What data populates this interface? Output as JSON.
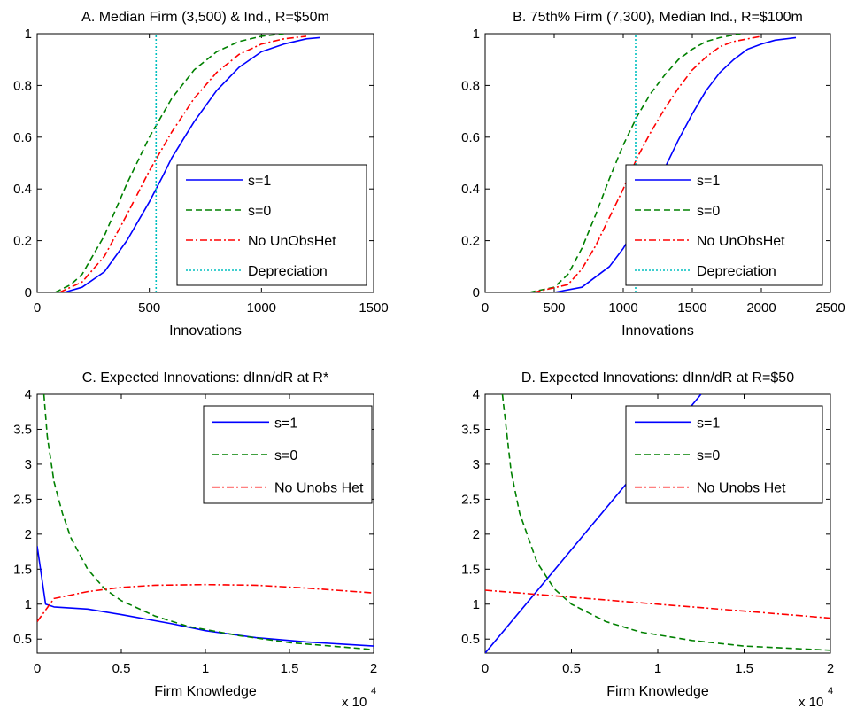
{
  "chart_data": [
    {
      "type": "line",
      "title": "A. Median Firm (3,500) & Ind., R=$50m",
      "xlabel": "Innovations",
      "ylabel": "",
      "xlim": [
        0,
        1500
      ],
      "ylim": [
        0,
        1
      ],
      "xticks": [
        0,
        500,
        1000,
        1500
      ],
      "yticks": [
        0,
        0.2,
        0.4,
        0.6,
        0.8,
        1
      ],
      "xtick_labels": [
        "0",
        "500",
        "1000",
        "1500"
      ],
      "ytick_labels": [
        "0",
        "0.2",
        "0.4",
        "0.6",
        "0.8",
        "1"
      ],
      "legend_position": "bottom-right",
      "series": [
        {
          "name": "s=1",
          "color": "#0000ff",
          "dash": "solid",
          "x": [
            120,
            200,
            300,
            400,
            500,
            560,
            600,
            700,
            800,
            900,
            1000,
            1100,
            1200,
            1260
          ],
          "y": [
            0.0,
            0.02,
            0.08,
            0.2,
            0.35,
            0.45,
            0.52,
            0.66,
            0.78,
            0.87,
            0.93,
            0.96,
            0.98,
            0.985
          ]
        },
        {
          "name": "s=0",
          "color": "#008000",
          "dash": "dashed",
          "x": [
            80,
            150,
            200,
            300,
            400,
            500,
            600,
            700,
            800,
            900,
            1000,
            1100
          ],
          "y": [
            0.0,
            0.03,
            0.07,
            0.22,
            0.42,
            0.6,
            0.75,
            0.86,
            0.93,
            0.97,
            0.99,
            1.0
          ]
        },
        {
          "name": "No UnObsHet",
          "color": "#ff0000",
          "dash": "dashdot",
          "x": [
            100,
            200,
            300,
            400,
            500,
            600,
            700,
            800,
            900,
            1000,
            1100,
            1200
          ],
          "y": [
            0.0,
            0.04,
            0.14,
            0.3,
            0.47,
            0.62,
            0.75,
            0.85,
            0.92,
            0.96,
            0.98,
            0.99
          ]
        },
        {
          "name": "Depreciation",
          "color": "#00bfbf",
          "dash": "dotted",
          "x": [
            530,
            530
          ],
          "y": [
            0,
            1
          ]
        }
      ]
    },
    {
      "type": "line",
      "title": "B. 75th% Firm (7,300), Median Ind., R=$100m",
      "xlabel": "Innovations",
      "ylabel": "",
      "xlim": [
        0,
        2500
      ],
      "ylim": [
        0,
        1
      ],
      "xticks": [
        0,
        500,
        1000,
        1500,
        2000,
        2500
      ],
      "yticks": [
        0,
        0.2,
        0.4,
        0.6,
        0.8,
        1
      ],
      "xtick_labels": [
        "0",
        "500",
        "1000",
        "1500",
        "2000",
        "2500"
      ],
      "ytick_labels": [
        "0",
        "0.2",
        "0.4",
        "0.6",
        "0.8",
        "1"
      ],
      "legend_position": "bottom-right",
      "series": [
        {
          "name": "s=1",
          "color": "#0000ff",
          "dash": "solid",
          "x": [
            500,
            700,
            900,
            1000,
            1100,
            1200,
            1300,
            1400,
            1500,
            1600,
            1700,
            1800,
            1900,
            2000,
            2100,
            2250
          ],
          "y": [
            0.0,
            0.02,
            0.1,
            0.17,
            0.26,
            0.37,
            0.48,
            0.59,
            0.69,
            0.78,
            0.85,
            0.9,
            0.94,
            0.96,
            0.975,
            0.985
          ]
        },
        {
          "name": "s=0",
          "color": "#008000",
          "dash": "dashed",
          "x": [
            320,
            500,
            600,
            700,
            800,
            900,
            1000,
            1100,
            1200,
            1300,
            1400,
            1500,
            1600,
            1700,
            1850
          ],
          "y": [
            0.0,
            0.02,
            0.07,
            0.17,
            0.3,
            0.44,
            0.57,
            0.68,
            0.77,
            0.84,
            0.9,
            0.94,
            0.97,
            0.985,
            1.0
          ]
        },
        {
          "name": "No UnObsHet",
          "color": "#ff0000",
          "dash": "dashdot",
          "x": [
            350,
            600,
            700,
            800,
            900,
            1000,
            1100,
            1200,
            1300,
            1400,
            1500,
            1600,
            1700,
            1800,
            2000
          ],
          "y": [
            0.0,
            0.03,
            0.09,
            0.18,
            0.29,
            0.4,
            0.52,
            0.62,
            0.71,
            0.79,
            0.86,
            0.91,
            0.95,
            0.97,
            0.99
          ]
        },
        {
          "name": "Depreciation",
          "color": "#00bfbf",
          "dash": "dotted",
          "x": [
            1090,
            1090
          ],
          "y": [
            0,
            1
          ]
        }
      ]
    },
    {
      "type": "line",
      "title": "C. Expected Innovations:  dInn/dR at R*",
      "xlabel": "Firm Knowledge",
      "ylabel": "",
      "x_multiplier": "x 10",
      "x_multiplier_exp": "4",
      "xlim": [
        0,
        2
      ],
      "ylim": [
        0.3,
        4
      ],
      "xticks": [
        0,
        0.5,
        1,
        1.5,
        2
      ],
      "yticks": [
        0.5,
        1,
        1.5,
        2,
        2.5,
        3,
        3.5,
        4
      ],
      "xtick_labels": [
        "0",
        "0.5",
        "1",
        "1.5",
        "2"
      ],
      "ytick_labels": [
        "0.5",
        "1",
        "1.5",
        "2",
        "2.5",
        "3",
        "3.5",
        "4"
      ],
      "legend_position": "top-right",
      "series": [
        {
          "name": "s=1",
          "color": "#0000ff",
          "dash": "solid",
          "x": [
            0,
            0.05,
            0.1,
            0.3,
            0.5,
            0.8,
            1.0,
            1.3,
            1.6,
            2.0
          ],
          "y": [
            1.83,
            1.0,
            0.96,
            0.93,
            0.85,
            0.72,
            0.62,
            0.52,
            0.46,
            0.4
          ]
        },
        {
          "name": "s=0",
          "color": "#008000",
          "dash": "dashed",
          "x": [
            0.04,
            0.06,
            0.1,
            0.15,
            0.2,
            0.3,
            0.4,
            0.5,
            0.7,
            0.9,
            1.2,
            1.5,
            2.0
          ],
          "y": [
            4.0,
            3.4,
            2.75,
            2.3,
            1.95,
            1.5,
            1.22,
            1.05,
            0.83,
            0.68,
            0.55,
            0.45,
            0.35
          ]
        },
        {
          "name": "No Unobs Het",
          "color": "#ff0000",
          "dash": "dashdot",
          "x": [
            0,
            0.1,
            0.3,
            0.5,
            0.7,
            1.0,
            1.3,
            1.6,
            2.0
          ],
          "y": [
            0.75,
            1.08,
            1.18,
            1.24,
            1.27,
            1.28,
            1.27,
            1.23,
            1.16
          ]
        }
      ]
    },
    {
      "type": "line",
      "title": "D. Expected Innovations:  dInn/dR at R=$50",
      "xlabel": "Firm Knowledge",
      "ylabel": "",
      "x_multiplier": "x 10",
      "x_multiplier_exp": "4",
      "xlim": [
        0,
        2
      ],
      "ylim": [
        0.3,
        4
      ],
      "xticks": [
        0,
        0.5,
        1,
        1.5,
        2
      ],
      "yticks": [
        0.5,
        1,
        1.5,
        2,
        2.5,
        3,
        3.5,
        4
      ],
      "xtick_labels": [
        "0",
        "0.5",
        "1",
        "1.5",
        "2"
      ],
      "ytick_labels": [
        "0.5",
        "1",
        "1.5",
        "2",
        "2.5",
        "3",
        "3.5",
        "4"
      ],
      "legend_position": "top-right",
      "series": [
        {
          "name": "s=1",
          "color": "#0000ff",
          "dash": "solid",
          "x": [
            0,
            1.25
          ],
          "y": [
            0.3,
            4.0
          ]
        },
        {
          "name": "s=0",
          "color": "#008000",
          "dash": "dashed",
          "x": [
            0.1,
            0.15,
            0.2,
            0.3,
            0.4,
            0.5,
            0.7,
            0.9,
            1.2,
            1.5,
            2.0
          ],
          "y": [
            4.0,
            2.9,
            2.3,
            1.6,
            1.22,
            1.0,
            0.75,
            0.6,
            0.48,
            0.4,
            0.34
          ]
        },
        {
          "name": "No Unobs Het",
          "color": "#ff0000",
          "dash": "dashdot",
          "x": [
            0,
            0.5,
            1.0,
            1.5,
            2.0
          ],
          "y": [
            1.2,
            1.1,
            1.0,
            0.9,
            0.8
          ]
        }
      ]
    }
  ]
}
